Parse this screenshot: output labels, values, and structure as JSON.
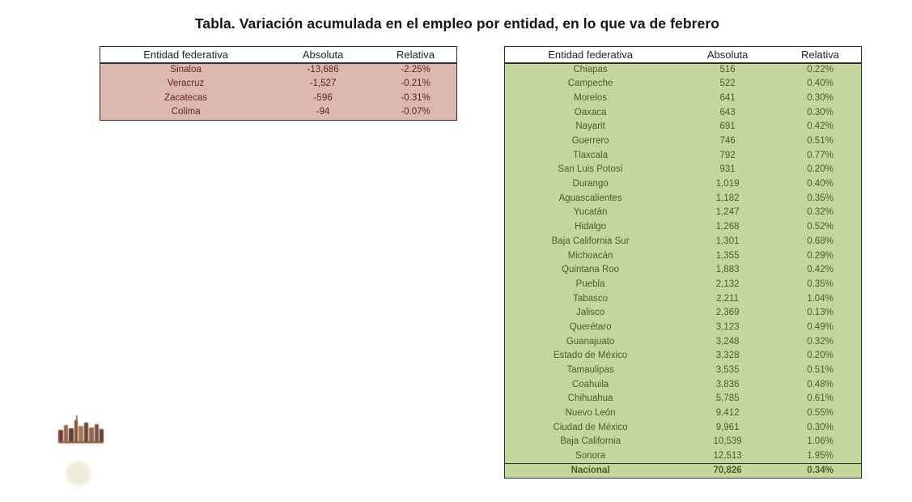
{
  "slide": {
    "title": "Tabla. Variación acumulada en el empleo por entidad, en lo que va de febrero"
  },
  "tables": {
    "negative": {
      "headers": [
        "Entidad federativa",
        "Absoluta",
        "Relativa"
      ],
      "rows": [
        [
          "Sinaloa",
          "-13,686",
          "-2.25%"
        ],
        [
          "Veracruz",
          "-1,527",
          "-0.21%"
        ],
        [
          "Zacatecas",
          "-596",
          "-0.31%"
        ],
        [
          "Colima",
          "-94",
          "-0.07%"
        ]
      ]
    },
    "positive": {
      "headers": [
        "Entidad federativa",
        "Absoluta",
        "Relativa"
      ],
      "rows": [
        [
          "Chiapas",
          "516",
          "0.22%"
        ],
        [
          "Campeche",
          "522",
          "0.40%"
        ],
        [
          "Morelos",
          "641",
          "0.30%"
        ],
        [
          "Oaxaca",
          "643",
          "0.30%"
        ],
        [
          "Nayarit",
          "691",
          "0.42%"
        ],
        [
          "Guerrero",
          "746",
          "0.51%"
        ],
        [
          "Tlaxcala",
          "792",
          "0.77%"
        ],
        [
          "San Luis Potosí",
          "931",
          "0.20%"
        ],
        [
          "Durango",
          "1,019",
          "0.40%"
        ],
        [
          "Aguascalientes",
          "1,182",
          "0.35%"
        ],
        [
          "Yucatán",
          "1,247",
          "0.32%"
        ],
        [
          "Hidalgo",
          "1,268",
          "0.52%"
        ],
        [
          "Baja California Sur",
          "1,301",
          "0.68%"
        ],
        [
          "Michoacán",
          "1,355",
          "0.29%"
        ],
        [
          "Quintana Roo",
          "1,883",
          "0.42%"
        ],
        [
          "Puebla",
          "2,132",
          "0.35%"
        ],
        [
          "Tabasco",
          "2,211",
          "1.04%"
        ],
        [
          "Jalisco",
          "2,369",
          "0.13%"
        ],
        [
          "Querétaro",
          "3,123",
          "0.49%"
        ],
        [
          "Guanajuato",
          "3,248",
          "0.32%"
        ],
        [
          "Estado de México",
          "3,328",
          "0.20%"
        ],
        [
          "Tamaulipas",
          "3,535",
          "0.51%"
        ],
        [
          "Coahuila",
          "3,836",
          "0.48%"
        ],
        [
          "Chihuahua",
          "5,785",
          "0.61%"
        ],
        [
          "Nuevo León",
          "9,412",
          "0.55%"
        ],
        [
          "Ciudad de México",
          "9,961",
          "0.30%"
        ],
        [
          "Baja California",
          "10,539",
          "1.06%"
        ],
        [
          "Sonora",
          "12,513",
          "1.95%"
        ]
      ],
      "total_rows": [
        [
          "Nacional",
          "70,826",
          "0.34%"
        ]
      ]
    }
  },
  "colors": {
    "negative_row_bg": "#dcb8b1",
    "negative_text": "#632423",
    "positive_row_bg": "#c3d69b",
    "positive_text": "#4c5e27",
    "header_text": "#262626",
    "table_border": "#2e2e2e"
  },
  "logo": {
    "name": "city-skyline-logo"
  }
}
